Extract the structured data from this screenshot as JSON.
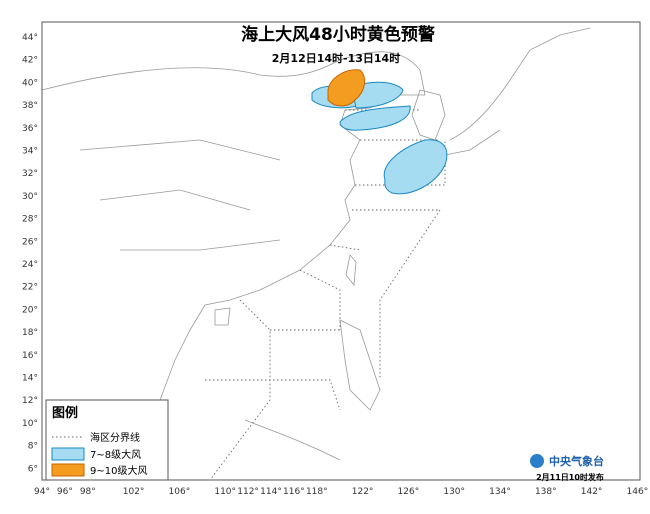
{
  "header": {
    "title": "海上大风48小时黄色预警",
    "subtitle": "2月12日14时-13日14时"
  },
  "axes": {
    "lat_labels": [
      "44°",
      "42°",
      "40°",
      "38°",
      "36°",
      "34°",
      "32°",
      "30°",
      "28°",
      "26°",
      "24°",
      "22°",
      "20°",
      "18°",
      "16°",
      "14°",
      "12°",
      "10°",
      "8°",
      "6°"
    ],
    "lon_labels": [
      "94°",
      "96°",
      "98°",
      "102°",
      "106°",
      "110°",
      "112°",
      "114°",
      "116°",
      "118°",
      "122°",
      "126°",
      "130°",
      "134°",
      "138°",
      "142°",
      "146°"
    ]
  },
  "legend": {
    "title": "图例",
    "items": [
      "海区分界线",
      "7~8级大风",
      "9~10级大风"
    ]
  },
  "footer": {
    "agency": "中央气象台",
    "issued": "2月11日10时发布"
  }
}
